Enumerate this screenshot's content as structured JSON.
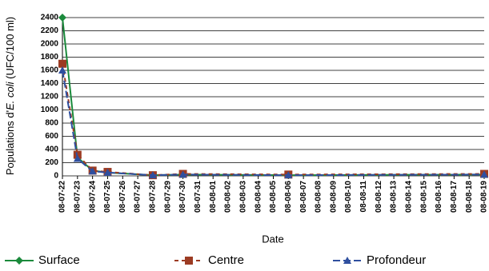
{
  "chart_data": {
    "type": "line",
    "xlabel": "Date",
    "ylabel": [
      "Populations d'",
      "E. coli",
      " (UFC/100 ml)"
    ],
    "categories": [
      "08-07-22",
      "08-07-23",
      "08-07-24",
      "08-07-25",
      "08-07-26",
      "08-07-27",
      "08-07-28",
      "08-07-29",
      "08-07-30",
      "08-07-31",
      "08-08-01",
      "08-08-02",
      "08-08-03",
      "08-08-04",
      "08-08-05",
      "08-08-06",
      "08-08-07",
      "08-08-08",
      "08-08-09",
      "08-08-10",
      "08-08-11",
      "08-08-12",
      "08-08-13",
      "08-08-14",
      "08-08-15",
      "08-08-16",
      "08-08-17",
      "08-08-18",
      "08-08-19"
    ],
    "x": [
      "08-07-22",
      "08-07-23",
      "08-07-24",
      "08-07-25",
      "08-07-28",
      "08-07-30",
      "08-08-06",
      "08-08-19"
    ],
    "series": [
      {
        "name": "Surface",
        "color": "#1b8a3c",
        "marker": "diamond",
        "dash": "solid",
        "values": [
          2400,
          280,
          80,
          50,
          10,
          20,
          10,
          20
        ]
      },
      {
        "name": "Centre",
        "color": "#9c3b23",
        "marker": "square",
        "dash": "short",
        "values": [
          1700,
          320,
          80,
          60,
          10,
          30,
          20,
          30
        ]
      },
      {
        "name": "Profondeur",
        "color": "#2f4f9f",
        "marker": "triangle",
        "dash": "long",
        "values": [
          1600,
          260,
          70,
          50,
          10,
          20,
          10,
          20
        ]
      }
    ],
    "ylim": [
      0,
      2400
    ],
    "yticks": [
      0,
      200,
      400,
      600,
      800,
      1000,
      1200,
      1400,
      1600,
      1800,
      2000,
      2200,
      2400
    ],
    "grid": true
  }
}
